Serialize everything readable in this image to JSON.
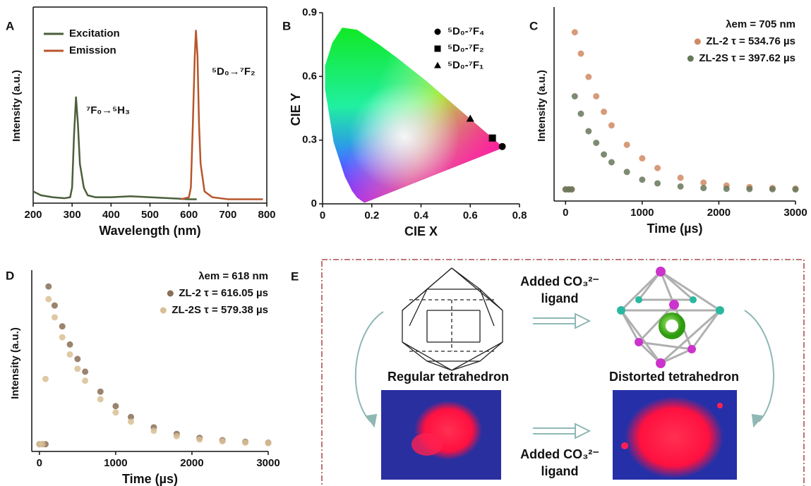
{
  "chart_data": [
    {
      "panel": "A",
      "type": "line",
      "x_label": "Wavelength (nm)",
      "y_label": "Intensity (a.u.)",
      "xlim": [
        200,
        800
      ],
      "xticks": [
        200,
        300,
        400,
        500,
        600,
        700,
        800
      ],
      "ylim": [
        0,
        100
      ],
      "annotations": [
        "⁷F₀→⁵H₃",
        "⁵D₀→⁷F₂"
      ],
      "series": [
        {
          "name": "Excitation",
          "color": "#4b5e3b",
          "x": [
            200,
            220,
            250,
            280,
            295,
            300,
            305,
            310,
            315,
            320,
            330,
            340,
            360,
            400,
            450,
            500,
            550,
            600,
            620
          ],
          "values": [
            6,
            4,
            3,
            2.5,
            3,
            8,
            35,
            54,
            40,
            20,
            8,
            4,
            3,
            3,
            3.5,
            3,
            2.5,
            2,
            2
          ]
        },
        {
          "name": "Emission",
          "color": "#b8562b",
          "x": [
            580,
            600,
            605,
            610,
            615,
            618,
            622,
            626,
            630,
            640,
            660,
            700,
            750,
            790
          ],
          "values": [
            2,
            3,
            8,
            40,
            75,
            88,
            75,
            40,
            20,
            6,
            3,
            2,
            2,
            2
          ]
        }
      ]
    },
    {
      "panel": "B",
      "type": "scatter",
      "x_label": "CIE X",
      "y_label": "CIE Y",
      "xlim": [
        0,
        0.8
      ],
      "xticks": [
        0,
        0.2,
        0.4,
        0.6,
        0.8
      ],
      "ylim": [
        0,
        0.9
      ],
      "yticks": [
        0,
        0.3,
        0.6,
        0.9
      ],
      "series": [
        {
          "name": "⁵D₀-⁷F₄",
          "marker": "circle",
          "color": "#000000",
          "x": [
            0.73
          ],
          "values": [
            0.27
          ]
        },
        {
          "name": "⁵D₀-⁷F₂",
          "marker": "square",
          "color": "#000000",
          "x": [
            0.69
          ],
          "values": [
            0.31
          ]
        },
        {
          "name": "⁵D₀-⁷F₁",
          "marker": "triangle",
          "color": "#000000",
          "x": [
            0.6
          ],
          "values": [
            0.4
          ]
        }
      ]
    },
    {
      "panel": "C",
      "type": "scatter",
      "x_label": "Time (µs)",
      "y_label": "Intensity (a.u.)",
      "annotation": "λem = 705 nm",
      "xlim": [
        -150,
        3000
      ],
      "xticks": [
        0,
        1000,
        2000,
        3000
      ],
      "ylim": [
        0,
        100
      ],
      "x": [
        0,
        40,
        80,
        120,
        200,
        300,
        400,
        500,
        600,
        800,
        1000,
        1200,
        1500,
        1800,
        2100,
        2400,
        2700,
        3000
      ],
      "series": [
        {
          "name": "ZL-2 τ = 534.76 µs",
          "marker": "circle",
          "color": "#d08a63",
          "values": [
            6,
            6,
            6,
            87,
            76,
            64,
            54,
            46,
            39,
            29,
            22,
            17,
            12,
            9.5,
            8,
            7.2,
            6.7,
            6.4
          ]
        },
        {
          "name": "ZL-2S τ = 397.62 µs",
          "marker": "circle",
          "color": "#67775a",
          "values": [
            6,
            6,
            6,
            54,
            45,
            36,
            30,
            24,
            20,
            15,
            11,
            9.1,
            7.5,
            6.7,
            6.3,
            6.2,
            6.1,
            6
          ]
        }
      ]
    },
    {
      "panel": "D",
      "type": "scatter",
      "x_label": "Time (µs)",
      "y_label": "Intensity (a.u.)",
      "annotation": "λem = 618 nm",
      "xlim": [
        -100,
        3000
      ],
      "xticks": [
        0,
        1000,
        2000,
        3000
      ],
      "ylim": [
        0,
        100
      ],
      "x": [
        0,
        40,
        80,
        120,
        200,
        300,
        400,
        500,
        600,
        800,
        1000,
        1200,
        1500,
        1800,
        2100,
        2400,
        2700,
        3000
      ],
      "series": [
        {
          "name": "ZL-2 τ = 616.05 µs",
          "marker": "circle",
          "color": "#8a6e55",
          "values": [
            4,
            4,
            4,
            91,
            80.5,
            69,
            59,
            51,
            44,
            33,
            25,
            19,
            13.3,
            9.7,
            7.5,
            6.2,
            5.3,
            4.8
          ]
        },
        {
          "name": "ZL-2S τ = 579.38 µs",
          "marker": "circle",
          "color": "#d9bf95",
          "values": [
            4,
            4,
            40,
            84,
            74,
            63,
            53.5,
            45.6,
            39,
            28.8,
            21.5,
            16.4,
            11.4,
            8.4,
            6.6,
            5.6,
            4.9,
            4.6
          ]
        }
      ]
    }
  ],
  "panel_e": {
    "panel": "E",
    "left_label": "Regular tetrahedron",
    "right_label": "Distorted tetrahedron",
    "top_arrow_label": [
      "Added CO₃²⁻",
      "ligand"
    ],
    "bottom_arrow_label": [
      "Added CO₃²⁻",
      "ligand"
    ]
  }
}
